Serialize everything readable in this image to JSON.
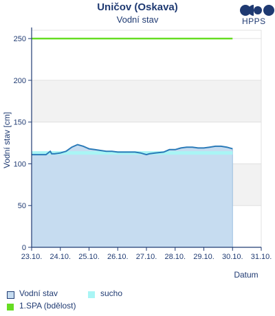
{
  "header": {
    "title": "Uničov (Oskava)",
    "subtitle": "Vodní stav",
    "logo_text": "HPPS"
  },
  "legend": {
    "items": [
      {
        "label": "Vodní stav",
        "color": "#c6dcf0",
        "border": "#1f3a72"
      },
      {
        "label": "sucho",
        "color": "#a9f5f5",
        "border": "#a9f5f5"
      },
      {
        "label": "1.SPA (bdělost)",
        "color": "#66dd22",
        "border": "#66dd22"
      }
    ]
  },
  "chart_data": {
    "type": "area",
    "title": "Uničov (Oskava)",
    "subtitle": "Vodní stav",
    "xlabel": "Datum",
    "ylabel": "Vodní stav [cm]",
    "ylim": [
      0,
      260
    ],
    "yticks": [
      0,
      50,
      100,
      150,
      200,
      250
    ],
    "xlim": [
      0,
      8
    ],
    "xticks": [
      "23.10.",
      "24.10.",
      "25.10.",
      "26.10.",
      "27.10.",
      "28.10.",
      "29.10.",
      "30.10.",
      "31.10."
    ],
    "grid": true,
    "colors": {
      "water_fill": "#c6dcf0",
      "water_line": "#2a7ab8",
      "drought": "#a9f5f5",
      "spa1": "#66dd22",
      "band_alt": "#f2f2f2",
      "axis": "#1f3a72"
    },
    "series": [
      {
        "name": "Vodní stav",
        "x": [
          0,
          0.25,
          0.5,
          0.65,
          0.7,
          0.8,
          1.0,
          1.2,
          1.4,
          1.6,
          1.8,
          2.0,
          2.2,
          2.4,
          2.6,
          2.8,
          3.0,
          3.3,
          3.6,
          3.8,
          3.9,
          4.0,
          4.1,
          4.3,
          4.6,
          4.8,
          5.0,
          5.2,
          5.4,
          5.6,
          5.8,
          6.0,
          6.2,
          6.4,
          6.6,
          6.8,
          7.0
        ],
        "y": [
          111,
          111,
          111,
          115,
          112,
          112,
          113,
          115,
          120,
          123,
          121,
          118,
          117,
          116,
          115,
          115,
          114,
          114,
          114,
          113,
          112,
          111,
          112,
          113,
          114,
          117,
          117,
          119,
          120,
          120,
          119,
          119,
          120,
          121,
          121,
          120,
          118
        ]
      },
      {
        "name": "sucho",
        "x": [
          0,
          7
        ],
        "y": [
          113,
          113
        ]
      },
      {
        "name": "1.SPA (bdělost)",
        "x": [
          0,
          7
        ],
        "y": [
          250,
          250
        ]
      }
    ]
  }
}
